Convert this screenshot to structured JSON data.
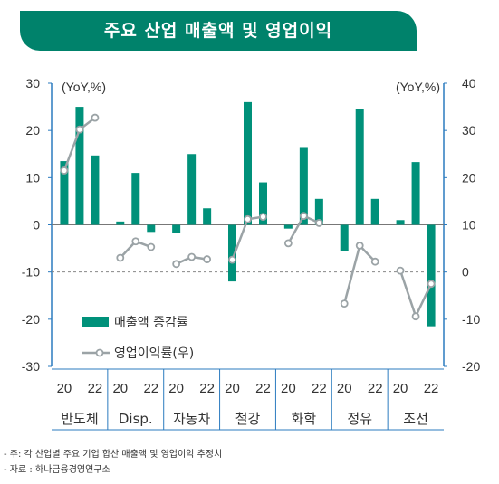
{
  "title": "주요 산업 매출액 및 영업이익",
  "notes": [
    "- 주: 각 산업별 주요 기업 합산 매출액 및 영업이익 추정치",
    "- 자료 : 하나금융경영연구소"
  ],
  "colors": {
    "bar": "#00917a",
    "line": "#9ba3a6",
    "axis": "#2b7bbf",
    "banner": "#00826b"
  },
  "chart_data": {
    "type": "bar+line",
    "left_axis": {
      "unit": "(YoY,%)",
      "ylim": [
        -30,
        30
      ],
      "ticks": [
        30,
        20,
        10,
        0,
        -10,
        -20,
        -30
      ]
    },
    "right_axis": {
      "unit": "(YoY,%)",
      "ylim": [
        -20,
        40
      ],
      "ticks": [
        40,
        30,
        20,
        10,
        0,
        -10,
        -20
      ]
    },
    "year_labels": [
      "20",
      "22"
    ],
    "categories": [
      "반도체",
      "Disp.",
      "자동차",
      "철강",
      "화학",
      "정유",
      "조선"
    ],
    "series": [
      {
        "name": "매출액 증감률",
        "axis": "left",
        "kind": "bar",
        "values": [
          [
            13.5,
            25,
            14.7
          ],
          [
            0.7,
            11,
            -1.5
          ],
          [
            -1.8,
            15,
            3.5
          ],
          [
            -12,
            26,
            9
          ],
          [
            -0.8,
            16.3,
            5.5
          ],
          [
            -5.5,
            24.5,
            5.5
          ],
          [
            1,
            13.3,
            -21.5
          ]
        ]
      },
      {
        "name": "영업이익률(우)",
        "axis": "right",
        "kind": "line",
        "values": [
          [
            21.5,
            30.2,
            32.7
          ],
          [
            3,
            6.5,
            5.3
          ],
          [
            1.7,
            3.2,
            2.7
          ],
          [
            2.6,
            11.2,
            11.7
          ],
          [
            6.1,
            11.9,
            10.4
          ],
          [
            -6.7,
            5.6,
            2.2
          ],
          [
            0.3,
            -9.4,
            -2.5
          ]
        ]
      }
    ],
    "reference_line": {
      "axis": "right",
      "value": 0,
      "style": "dashed"
    },
    "legend_position": "lower-left"
  }
}
